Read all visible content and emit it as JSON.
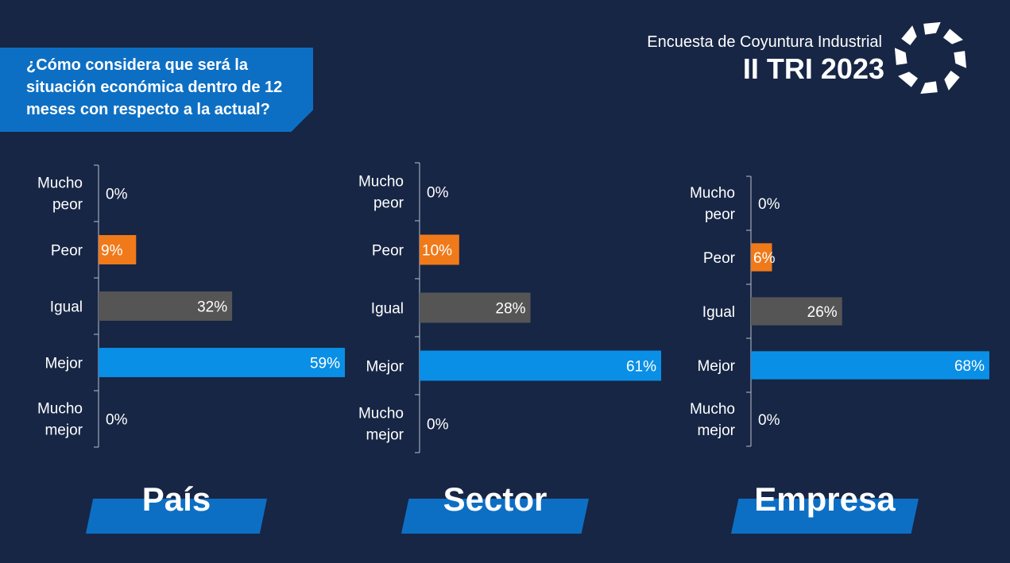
{
  "question": "¿Cómo considera que será la situación económica dentro de 12 meses con respecto a la actual?",
  "brand": {
    "subtitle": "Encuesta de Coyuntura Industrial",
    "period": "II TRI 2023",
    "logo_icon": "arrow-ring-logo-icon"
  },
  "colors": {
    "background": "#172645",
    "accent_blue": "#0d6fc4",
    "Mucho peor": "#ffffff",
    "Peor": "#f07a1a",
    "Igual": "#555555",
    "Mejor": "#0a8fe6",
    "Mucho mejor": "#ffffff"
  },
  "chart_data": [
    {
      "type": "bar",
      "orientation": "horizontal",
      "title": "País",
      "categories": [
        "Mucho peor",
        "Peor",
        "Igual",
        "Mejor",
        "Mucho mejor"
      ],
      "values": [
        0,
        9,
        32,
        59,
        0
      ],
      "labels": [
        "0%",
        "9%",
        "32%",
        "59%",
        "0%"
      ],
      "unit": "%",
      "xlim": [
        0,
        59
      ]
    },
    {
      "type": "bar",
      "orientation": "horizontal",
      "title": "Sector",
      "categories": [
        "Mucho peor",
        "Peor",
        "Igual",
        "Mejor",
        "Mucho mejor"
      ],
      "values": [
        0,
        10,
        28,
        61,
        0
      ],
      "labels": [
        "0%",
        "10%",
        "28%",
        "61%",
        "0%"
      ],
      "unit": "%",
      "xlim": [
        0,
        61
      ]
    },
    {
      "type": "bar",
      "orientation": "horizontal",
      "title": "Empresa",
      "categories": [
        "Mucho peor",
        "Peor",
        "Igual",
        "Mejor",
        "Mucho mejor"
      ],
      "values": [
        0,
        6,
        26,
        68,
        0
      ],
      "labels": [
        "0%",
        "6%",
        "26%",
        "68%",
        "0%"
      ],
      "unit": "%",
      "xlim": [
        0,
        68
      ]
    }
  ]
}
